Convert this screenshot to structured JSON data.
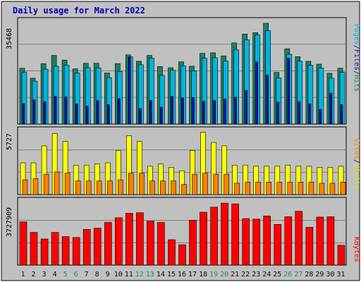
{
  "chart_data": [
    {
      "type": "bar",
      "title": "Daily usage for March 2022",
      "panel": "hits-files-pages",
      "ylabel": "Pages / Files / Hits",
      "ymax_label": "35468",
      "ylim": [
        0,
        35468
      ],
      "grid": true,
      "categories": [
        "1",
        "2",
        "3",
        "4",
        "5",
        "6",
        "7",
        "8",
        "9",
        "10",
        "11",
        "12",
        "13",
        "14",
        "15",
        "16",
        "17",
        "18",
        "19",
        "20",
        "21",
        "22",
        "23",
        "24",
        "25",
        "26",
        "27",
        "28",
        "29",
        "30",
        "31"
      ],
      "series": [
        {
          "name": "Hits",
          "color": "#1e8060",
          "values": [
            19100,
            15700,
            20700,
            23500,
            21900,
            18900,
            20800,
            20800,
            17500,
            20700,
            23700,
            21500,
            23500,
            19700,
            19300,
            21300,
            19800,
            24200,
            24400,
            23300,
            27800,
            30800,
            31300,
            34500,
            17700,
            25800,
            23100,
            21500,
            20500,
            17400,
            19100
          ]
        },
        {
          "name": "Files",
          "color": "#00b4e0",
          "values": [
            17700,
            14700,
            18800,
            19800,
            20200,
            17500,
            19300,
            19200,
            15900,
            18000,
            23000,
            20300,
            22600,
            16700,
            18400,
            19900,
            18200,
            22500,
            22700,
            21600,
            25400,
            28800,
            30500,
            32000,
            15800,
            23900,
            21500,
            20100,
            19200,
            15700,
            17700
          ]
        },
        {
          "name": "Pages",
          "color": "#1010b4",
          "values": [
            7000,
            8300,
            7600,
            9500,
            9300,
            6900,
            6200,
            8000,
            6600,
            8700,
            22800,
            5300,
            8100,
            5800,
            9500,
            9000,
            9100,
            7800,
            8100,
            8600,
            9200,
            11500,
            21300,
            16800,
            7500,
            22500,
            7700,
            6900,
            5000,
            10600,
            6700
          ]
        }
      ]
    },
    {
      "type": "bar",
      "panel": "visits-sites",
      "ylabel": "Sites / Visits",
      "ymax_label": "5727",
      "ylim": [
        0,
        5727
      ],
      "grid": true,
      "categories": [
        "1",
        "2",
        "3",
        "4",
        "5",
        "6",
        "7",
        "8",
        "9",
        "10",
        "11",
        "12",
        "13",
        "14",
        "15",
        "16",
        "17",
        "18",
        "19",
        "20",
        "21",
        "22",
        "23",
        "24",
        "25",
        "26",
        "27",
        "28",
        "29",
        "30",
        "31"
      ],
      "series": [
        {
          "name": "Visits",
          "color": "#ffff00",
          "values": [
            2800,
            2800,
            4300,
            5400,
            4700,
            2600,
            2600,
            2700,
            2800,
            3900,
            5200,
            4700,
            2500,
            2700,
            2400,
            2100,
            3900,
            5500,
            4600,
            4300,
            2600,
            2600,
            2500,
            2500,
            2500,
            2600,
            2500,
            2500,
            2400,
            2400,
            2500
          ]
        },
        {
          "name": "Sites",
          "color": "#ff8000",
          "values": [
            1300,
            1400,
            1800,
            2000,
            1900,
            1200,
            1200,
            1200,
            1200,
            1300,
            1900,
            1900,
            1200,
            1200,
            1200,
            900,
            1800,
            1900,
            1800,
            1800,
            1000,
            1100,
            1100,
            1100,
            1100,
            1100,
            1100,
            1100,
            1000,
            1000,
            1100
          ]
        }
      ]
    },
    {
      "type": "bar",
      "panel": "kbytes",
      "ylabel": "KBytes",
      "ymax_label": "3727909",
      "ylim": [
        0,
        3727909
      ],
      "grid": true,
      "categories": [
        "1",
        "2",
        "3",
        "4",
        "5",
        "6",
        "7",
        "8",
        "9",
        "10",
        "11",
        "12",
        "13",
        "14",
        "15",
        "16",
        "17",
        "18",
        "19",
        "20",
        "21",
        "22",
        "23",
        "24",
        "25",
        "26",
        "27",
        "28",
        "29",
        "30",
        "31"
      ],
      "series": [
        {
          "name": "KBytes",
          "color": "#ff0000",
          "values": [
            2480000,
            1880000,
            1500000,
            1880000,
            1640000,
            1590000,
            2050000,
            2120000,
            2450000,
            2720000,
            2980000,
            3010000,
            2530000,
            2450000,
            1460000,
            1170000,
            2580000,
            3040000,
            3330000,
            3560000,
            3520000,
            2670000,
            2640000,
            2820000,
            2340000,
            2780000,
            3090000,
            2170000,
            2760000,
            2780000,
            1140000
          ]
        }
      ]
    }
  ],
  "x_tick_colors": [
    "#0a0a0a",
    "#0a0a0a",
    "#0a0a0a",
    "#0a0a0a",
    "#1a8a74",
    "#1a8a74",
    "#0a0a0a",
    "#0a0a0a",
    "#0a0a0a",
    "#0a0a0a",
    "#0a0a0a",
    "#1a8a74",
    "#1a8a74",
    "#0a0a0a",
    "#0a0a0a",
    "#0a0a0a",
    "#0a0a0a",
    "#0a0a0a",
    "#1a8a74",
    "#1a8a74",
    "#0a0a0a",
    "#0a0a0a",
    "#0a0a0a",
    "#0a0a0a",
    "#0a0a0a",
    "#1a8a74",
    "#1a8a74",
    "#0a0a0a",
    "#0a0a0a",
    "#0a0a0a",
    "#0a0a0a"
  ],
  "axis_label_parts": {
    "top": [
      {
        "text": "Pages",
        "color": "#00b4e0"
      },
      {
        "text": "/",
        "color": "#0000a0"
      },
      {
        "text": "Files",
        "color": "#1010b4"
      },
      {
        "text": "/",
        "color": "#0000a0"
      },
      {
        "text": "Hits",
        "color": "#1e8060"
      }
    ],
    "middle": [
      {
        "text": "Sites",
        "color": "#ff8000"
      },
      {
        "text": "/",
        "color": "#0000a0"
      },
      {
        "text": "Visits",
        "color": "#e6e600"
      }
    ],
    "bottom": [
      {
        "text": "KBytes",
        "color": "#ff0000"
      }
    ]
  },
  "colors": {
    "title": "#0000b0",
    "frame_bg": "#c0c0c0",
    "panel_bg": "#c0c0c0",
    "grid": "#808080",
    "axis_text": "#000000"
  }
}
